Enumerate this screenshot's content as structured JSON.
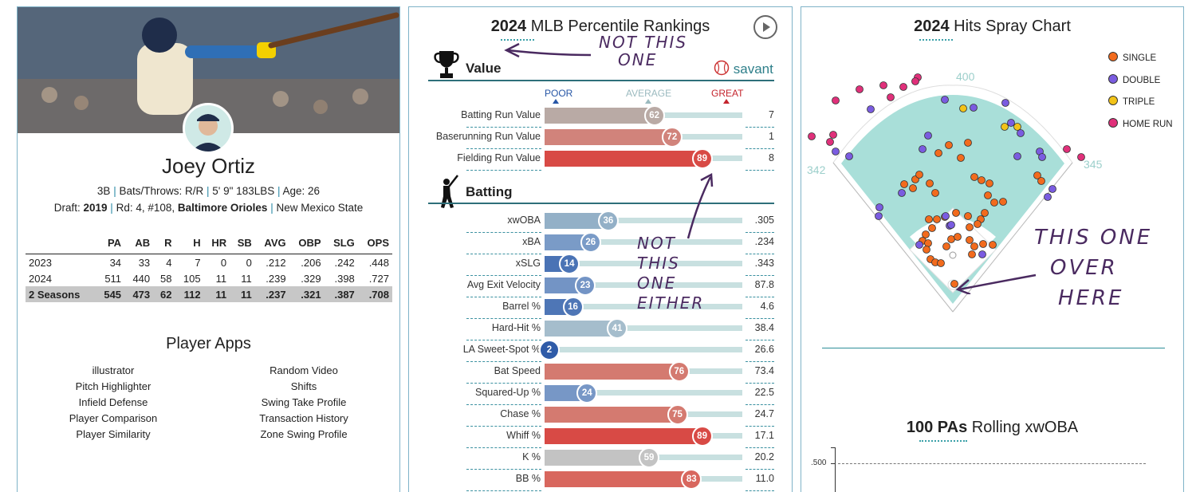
{
  "player": {
    "name": "Joey Ortiz",
    "position": "3B",
    "bats_throws": "Bats/Throws: R/R",
    "height_weight": "5' 9\" 183LBS",
    "age": "Age: 26",
    "draft_prefix": "Draft:",
    "draft_year": "2019",
    "draft_round": "Rd: 4, #108,",
    "draft_team": "Baltimore Orioles",
    "school": "New Mexico State"
  },
  "stats": {
    "headers": [
      "",
      "PA",
      "AB",
      "R",
      "H",
      "HR",
      "SB",
      "AVG",
      "OBP",
      "SLG",
      "OPS"
    ],
    "rows": [
      [
        "2023",
        "34",
        "33",
        "4",
        "7",
        "0",
        "0",
        ".212",
        ".206",
        ".242",
        ".448"
      ],
      [
        "2024",
        "511",
        "440",
        "58",
        "105",
        "11",
        "11",
        ".239",
        ".329",
        ".398",
        ".727"
      ],
      [
        "2 Seasons",
        "545",
        "473",
        "62",
        "112",
        "11",
        "11",
        ".237",
        ".321",
        ".387",
        ".708"
      ]
    ]
  },
  "apps": {
    "title": "Player Apps",
    "left": [
      "illustrator",
      "Pitch Highlighter",
      "Infield Defense",
      "Player Comparison",
      "Player Similarity"
    ],
    "right": [
      "Random Video",
      "Shifts",
      "Swing Take Profile",
      "Transaction History",
      "Zone Swing Profile"
    ]
  },
  "percentile": {
    "title_bold": "2024",
    "title_rest": "MLB Percentile Rankings",
    "brand": "savant",
    "scale": {
      "poor": "POOR",
      "average": "AVERAGE",
      "great": "GREAT"
    },
    "value_section": "Value",
    "batting_section": "Batting",
    "value_metrics": [
      {
        "label": "Batting Run Value",
        "pct": 62,
        "value": "7",
        "color": "#b9aaa5"
      },
      {
        "label": "Baserunning Run Value",
        "pct": 72,
        "value": "1",
        "color": "#d1837b"
      },
      {
        "label": "Fielding Run Value",
        "pct": 89,
        "value": "8",
        "color": "#d84a45"
      }
    ],
    "batting_metrics": [
      {
        "label": "xwOBA",
        "pct": 36,
        "value": ".305",
        "color": "#93b0c7"
      },
      {
        "label": "xBA",
        "pct": 26,
        "value": ".234",
        "color": "#7a9bc7"
      },
      {
        "label": "xSLG",
        "pct": 14,
        "value": ".343",
        "color": "#4a73b5"
      },
      {
        "label": "Avg Exit Velocity",
        "pct": 23,
        "value": "87.8",
        "color": "#7394c5"
      },
      {
        "label": "Barrel %",
        "pct": 16,
        "value": "4.6",
        "color": "#4e76b6"
      },
      {
        "label": "Hard-Hit %",
        "pct": 41,
        "value": "38.4",
        "color": "#a5bdcc"
      },
      {
        "label": "LA Sweet-Spot %",
        "pct": 2,
        "value": "26.6",
        "color": "#2f5ba8"
      },
      {
        "label": "Bat Speed",
        "pct": 76,
        "value": "73.4",
        "color": "#d47a70"
      },
      {
        "label": "Squared-Up %",
        "pct": 24,
        "value": "22.5",
        "color": "#7797c6"
      },
      {
        "label": "Chase %",
        "pct": 75,
        "value": "24.7",
        "color": "#d47a70"
      },
      {
        "label": "Whiff %",
        "pct": 89,
        "value": "17.1",
        "color": "#d84a45"
      },
      {
        "label": "K %",
        "pct": 59,
        "value": "20.2",
        "color": "#c3c3c3"
      },
      {
        "label": "BB %",
        "pct": 83,
        "value": "11.0",
        "color": "#d8675e"
      }
    ]
  },
  "annotations": {
    "not_this_one": [
      "NOT THIS",
      "ONE"
    ],
    "not_this_either": [
      "NOT",
      "THIS",
      "ONE",
      "EITHER"
    ],
    "this_one": [
      "THIS ONE",
      "OVER",
      "HERE"
    ]
  },
  "spray": {
    "title_bold": "2024",
    "title_rest": "Hits Spray Chart",
    "distances": {
      "center": "400",
      "left": "342",
      "right": "345"
    },
    "legend": [
      {
        "label": "SINGLE",
        "color": "#f26b1d"
      },
      {
        "label": "DOUBLE",
        "color": "#7a5ce0"
      },
      {
        "label": "TRIPLE",
        "color": "#f2c318"
      },
      {
        "label": "HOME RUN",
        "color": "#e0307a"
      }
    ]
  },
  "rolling": {
    "title_bold": "100 PAs",
    "title_rest": "Rolling xwOBA",
    "y_tick": ".500"
  }
}
